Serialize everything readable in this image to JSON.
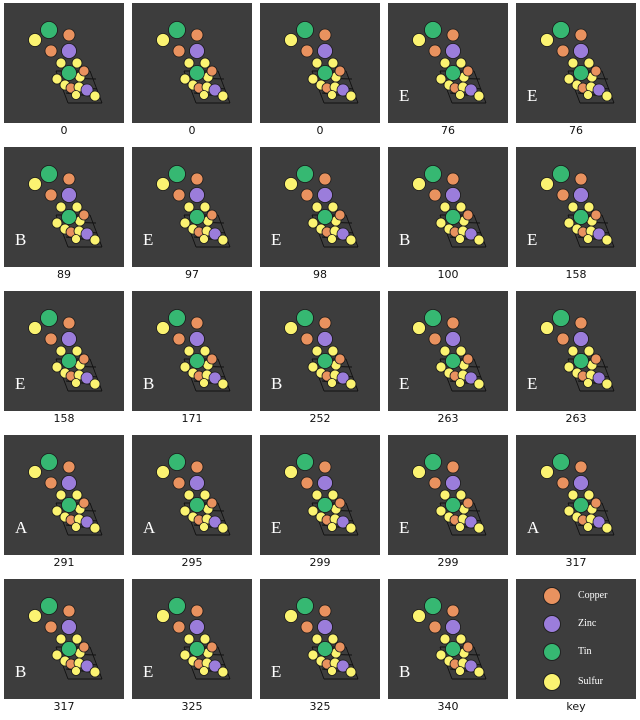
{
  "elements": {
    "copper": {
      "label": "Copper",
      "color": "#e9925f"
    },
    "zinc": {
      "label": "Zinc",
      "color": "#9b7ddb"
    },
    "tin": {
      "label": "Tin",
      "color": "#36b872"
    },
    "sulfur": {
      "label": "Sulfur",
      "color": "#fbf371"
    }
  },
  "panels": [
    {
      "tag": "",
      "caption": "0"
    },
    {
      "tag": "",
      "caption": "0"
    },
    {
      "tag": "",
      "caption": "0"
    },
    {
      "tag": "E",
      "caption": "76"
    },
    {
      "tag": "E",
      "caption": "76"
    },
    {
      "tag": "B",
      "caption": "89"
    },
    {
      "tag": "E",
      "caption": "97"
    },
    {
      "tag": "E",
      "caption": "98"
    },
    {
      "tag": "B",
      "caption": "100"
    },
    {
      "tag": "E",
      "caption": "158"
    },
    {
      "tag": "E",
      "caption": "158"
    },
    {
      "tag": "B",
      "caption": "171"
    },
    {
      "tag": "B",
      "caption": "252"
    },
    {
      "tag": "E",
      "caption": "263"
    },
    {
      "tag": "E",
      "caption": "263"
    },
    {
      "tag": "A",
      "caption": "291"
    },
    {
      "tag": "A",
      "caption": "295"
    },
    {
      "tag": "E",
      "caption": "299"
    },
    {
      "tag": "E",
      "caption": "299"
    },
    {
      "tag": "A",
      "caption": "317"
    },
    {
      "tag": "B",
      "caption": "317"
    },
    {
      "tag": "E",
      "caption": "325"
    },
    {
      "tag": "E",
      "caption": "325"
    },
    {
      "tag": "B",
      "caption": "340"
    }
  ],
  "key": {
    "caption": "key",
    "items": [
      "copper",
      "zinc",
      "tin",
      "sulfur"
    ]
  }
}
